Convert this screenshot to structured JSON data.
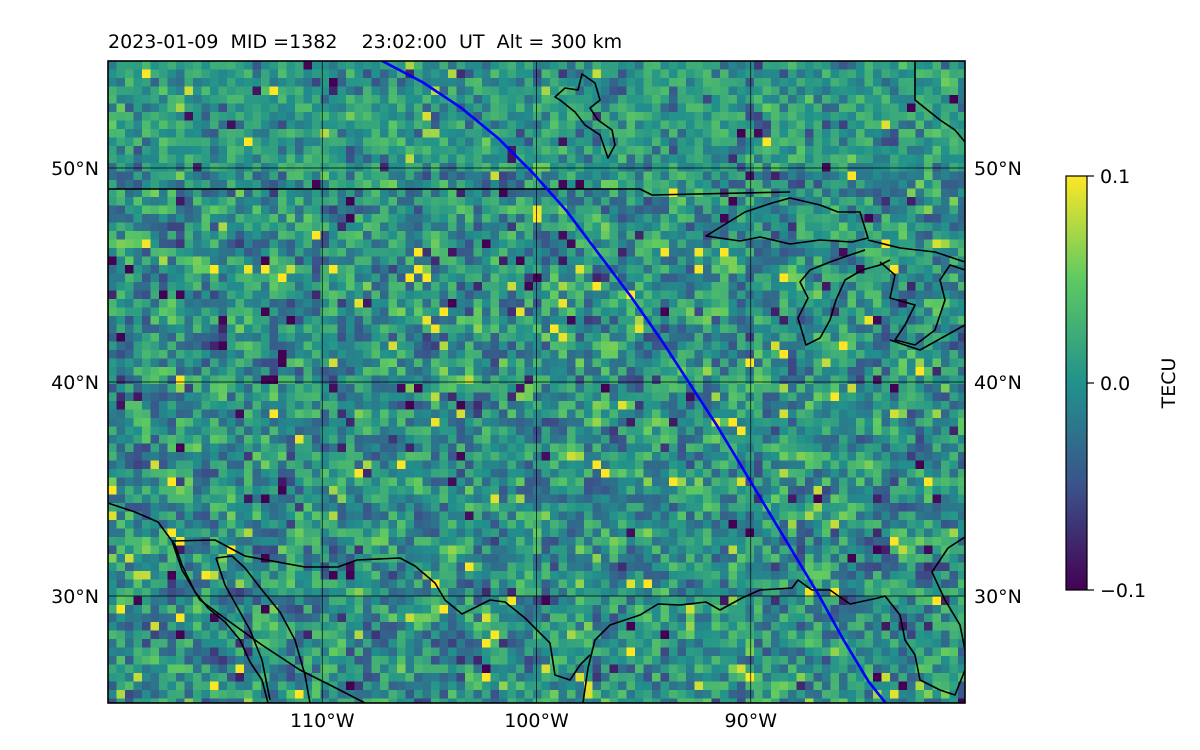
{
  "title": "2023-01-09  MID =1382    23:02:00  UT  Alt = 300 km",
  "map": {
    "lon_range": [
      -120,
      -80
    ],
    "lat_range": [
      25,
      55
    ],
    "lon_ticks": [
      {
        "value": -110,
        "label": "110°W"
      },
      {
        "value": -100,
        "label": "100°W"
      },
      {
        "value": -90,
        "label": "90°W"
      }
    ],
    "lat_ticks": [
      {
        "value": 50,
        "label": "50°N"
      },
      {
        "value": 40,
        "label": "40°N"
      },
      {
        "value": 30,
        "label": "30°N"
      }
    ],
    "grid": true,
    "coastlines": true,
    "country_borders": true,
    "field": "differential TEC, pixelated heatmap",
    "overlay_track_color": "#0000ff",
    "overlay_track": [
      [
        -107.2,
        55.0
      ],
      [
        -105.3,
        54.0
      ],
      [
        -103.5,
        52.8
      ],
      [
        -101.8,
        51.4
      ],
      [
        -100.2,
        49.8
      ],
      [
        -98.6,
        48.0
      ],
      [
        -97.1,
        46.0
      ],
      [
        -95.6,
        44.0
      ],
      [
        -94.2,
        42.0
      ],
      [
        -92.9,
        40.0
      ],
      [
        -91.6,
        38.0
      ],
      [
        -90.4,
        36.0
      ],
      [
        -89.2,
        34.0
      ],
      [
        -88.0,
        32.0
      ],
      [
        -86.8,
        30.0
      ],
      [
        -85.7,
        28.0
      ],
      [
        -84.5,
        26.0
      ],
      [
        -83.7,
        25.0
      ]
    ]
  },
  "colorbar": {
    "label": "TECU",
    "min": -0.1,
    "max": 0.1,
    "ticks": [
      {
        "value": 0.1,
        "label": "0.1"
      },
      {
        "value": 0.0,
        "label": "0.0"
      },
      {
        "value": -0.1,
        "label": "−0.1"
      }
    ],
    "colormap": "viridis",
    "colors": [
      "#440154",
      "#3b528b",
      "#21918c",
      "#5ec962",
      "#fde725"
    ]
  }
}
